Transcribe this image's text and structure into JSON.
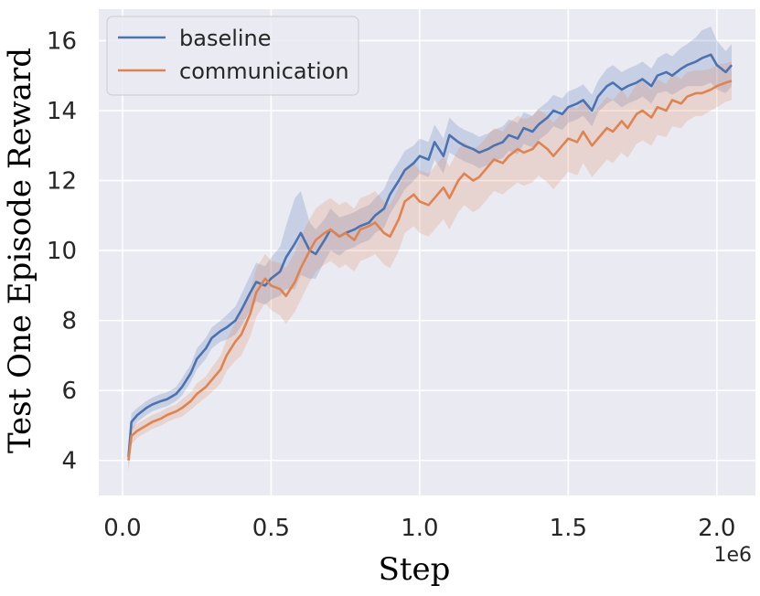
{
  "chart_data": {
    "type": "line",
    "title": "",
    "xlabel": "Step",
    "ylabel": "Test One Episode Reward",
    "x_offset_label": "1e6",
    "xlim": [
      -0.08,
      2.13
    ],
    "ylim": [
      3.0,
      16.9
    ],
    "x_ticks": [
      0.0,
      0.5,
      1.0,
      1.5,
      2.0
    ],
    "x_tick_labels": [
      "0.0",
      "0.5",
      "1.0",
      "1.5",
      "2.0"
    ],
    "y_ticks": [
      4,
      6,
      8,
      10,
      12,
      14,
      16
    ],
    "y_tick_labels": [
      "4",
      "6",
      "8",
      "10",
      "12",
      "14",
      "16"
    ],
    "grid": true,
    "legend_position": "top-left",
    "background_color": "#eaeaf2",
    "series": [
      {
        "name": "baseline",
        "color": "#4c72b0",
        "x": [
          0.02,
          0.03,
          0.05,
          0.08,
          0.1,
          0.13,
          0.15,
          0.18,
          0.2,
          0.23,
          0.25,
          0.28,
          0.3,
          0.33,
          0.35,
          0.38,
          0.4,
          0.43,
          0.45,
          0.48,
          0.5,
          0.53,
          0.55,
          0.58,
          0.6,
          0.63,
          0.65,
          0.68,
          0.7,
          0.73,
          0.75,
          0.78,
          0.8,
          0.83,
          0.85,
          0.88,
          0.9,
          0.93,
          0.95,
          0.98,
          1.0,
          1.03,
          1.05,
          1.08,
          1.1,
          1.13,
          1.15,
          1.18,
          1.2,
          1.23,
          1.25,
          1.28,
          1.3,
          1.33,
          1.35,
          1.38,
          1.4,
          1.43,
          1.45,
          1.48,
          1.5,
          1.53,
          1.55,
          1.58,
          1.6,
          1.63,
          1.65,
          1.68,
          1.7,
          1.73,
          1.75,
          1.78,
          1.8,
          1.83,
          1.85,
          1.88,
          1.9,
          1.93,
          1.95,
          1.98,
          2.0,
          2.03,
          2.05
        ],
        "y": [
          4.1,
          5.1,
          5.3,
          5.5,
          5.6,
          5.7,
          5.75,
          5.9,
          6.1,
          6.5,
          6.9,
          7.2,
          7.5,
          7.7,
          7.8,
          8.0,
          8.3,
          8.8,
          9.1,
          9.0,
          9.2,
          9.4,
          9.8,
          10.2,
          10.5,
          10.0,
          9.9,
          10.3,
          10.6,
          10.4,
          10.5,
          10.6,
          10.7,
          10.8,
          11.0,
          11.2,
          11.6,
          12.0,
          12.3,
          12.5,
          12.7,
          12.6,
          13.1,
          12.7,
          13.3,
          13.1,
          13.0,
          12.9,
          12.8,
          12.9,
          13.0,
          13.1,
          13.3,
          13.2,
          13.5,
          13.4,
          13.6,
          13.8,
          14.0,
          13.9,
          14.1,
          14.2,
          14.3,
          14.0,
          14.4,
          14.7,
          14.8,
          14.6,
          14.7,
          14.8,
          14.9,
          14.7,
          15.0,
          15.1,
          15.0,
          15.2,
          15.3,
          15.4,
          15.5,
          15.6,
          15.3,
          15.1,
          15.3
        ],
        "band_halfwidth": [
          0.3,
          0.25,
          0.2,
          0.2,
          0.2,
          0.2,
          0.2,
          0.2,
          0.25,
          0.25,
          0.3,
          0.3,
          0.3,
          0.3,
          0.35,
          0.4,
          0.45,
          0.5,
          0.55,
          0.55,
          0.6,
          0.7,
          0.9,
          1.3,
          1.2,
          0.8,
          0.7,
          0.6,
          0.6,
          0.55,
          0.5,
          0.5,
          0.5,
          0.5,
          0.5,
          0.55,
          0.55,
          0.55,
          0.55,
          0.5,
          0.5,
          0.5,
          0.5,
          0.5,
          0.5,
          0.45,
          0.45,
          0.45,
          0.45,
          0.45,
          0.45,
          0.45,
          0.45,
          0.45,
          0.45,
          0.45,
          0.45,
          0.45,
          0.45,
          0.45,
          0.45,
          0.45,
          0.45,
          0.45,
          0.45,
          0.5,
          0.5,
          0.5,
          0.5,
          0.5,
          0.5,
          0.5,
          0.5,
          0.55,
          0.55,
          0.6,
          0.6,
          0.7,
          0.8,
          0.8,
          0.7,
          0.6,
          0.6
        ]
      },
      {
        "name": "communication",
        "color": "#dd8452",
        "x": [
          0.02,
          0.03,
          0.05,
          0.08,
          0.1,
          0.13,
          0.15,
          0.18,
          0.2,
          0.23,
          0.25,
          0.28,
          0.3,
          0.33,
          0.35,
          0.38,
          0.4,
          0.43,
          0.45,
          0.48,
          0.5,
          0.53,
          0.55,
          0.58,
          0.6,
          0.63,
          0.65,
          0.68,
          0.7,
          0.73,
          0.75,
          0.78,
          0.8,
          0.83,
          0.85,
          0.88,
          0.9,
          0.93,
          0.95,
          0.98,
          1.0,
          1.03,
          1.05,
          1.08,
          1.1,
          1.13,
          1.15,
          1.18,
          1.2,
          1.23,
          1.25,
          1.28,
          1.3,
          1.33,
          1.35,
          1.38,
          1.4,
          1.43,
          1.45,
          1.48,
          1.5,
          1.53,
          1.55,
          1.58,
          1.6,
          1.63,
          1.65,
          1.68,
          1.7,
          1.73,
          1.75,
          1.78,
          1.8,
          1.83,
          1.85,
          1.88,
          1.9,
          1.93,
          1.95,
          1.98,
          2.0,
          2.03,
          2.05
        ],
        "y": [
          4.0,
          4.7,
          4.85,
          5.0,
          5.1,
          5.2,
          5.3,
          5.4,
          5.5,
          5.7,
          5.9,
          6.1,
          6.3,
          6.6,
          7.0,
          7.4,
          7.6,
          8.2,
          8.8,
          9.2,
          9.0,
          8.9,
          8.7,
          9.1,
          9.5,
          10.0,
          10.3,
          10.5,
          10.6,
          10.4,
          10.5,
          10.3,
          10.6,
          10.7,
          10.8,
          10.5,
          10.4,
          10.9,
          11.4,
          11.6,
          11.4,
          11.3,
          11.5,
          11.8,
          11.5,
          12.0,
          12.2,
          12.0,
          12.1,
          12.4,
          12.6,
          12.5,
          12.7,
          12.9,
          12.8,
          12.9,
          13.1,
          12.9,
          12.7,
          13.0,
          13.2,
          13.1,
          13.4,
          13.0,
          13.2,
          13.5,
          13.4,
          13.7,
          13.5,
          13.9,
          14.0,
          13.8,
          14.1,
          14.0,
          14.3,
          14.2,
          14.4,
          14.5,
          14.5,
          14.6,
          14.7,
          14.8,
          14.85
        ],
        "band_halfwidth": [
          0.35,
          0.25,
          0.2,
          0.2,
          0.2,
          0.2,
          0.2,
          0.2,
          0.25,
          0.25,
          0.3,
          0.3,
          0.35,
          0.4,
          0.45,
          0.55,
          0.6,
          0.65,
          0.7,
          0.7,
          0.7,
          0.75,
          0.8,
          0.85,
          0.9,
          0.9,
          0.9,
          0.9,
          0.9,
          0.9,
          0.9,
          0.9,
          0.9,
          0.9,
          0.9,
          0.9,
          0.9,
          0.9,
          0.9,
          0.9,
          0.9,
          0.9,
          0.9,
          0.9,
          0.9,
          0.9,
          0.9,
          0.9,
          0.9,
          0.9,
          0.9,
          0.9,
          0.95,
          0.95,
          0.95,
          0.95,
          0.95,
          0.95,
          0.95,
          0.95,
          0.95,
          0.95,
          0.9,
          0.9,
          0.9,
          0.9,
          0.9,
          0.9,
          0.85,
          0.85,
          0.85,
          0.8,
          0.8,
          0.75,
          0.75,
          0.7,
          0.7,
          0.65,
          0.65,
          0.6,
          0.6,
          0.55,
          0.55
        ]
      }
    ]
  }
}
